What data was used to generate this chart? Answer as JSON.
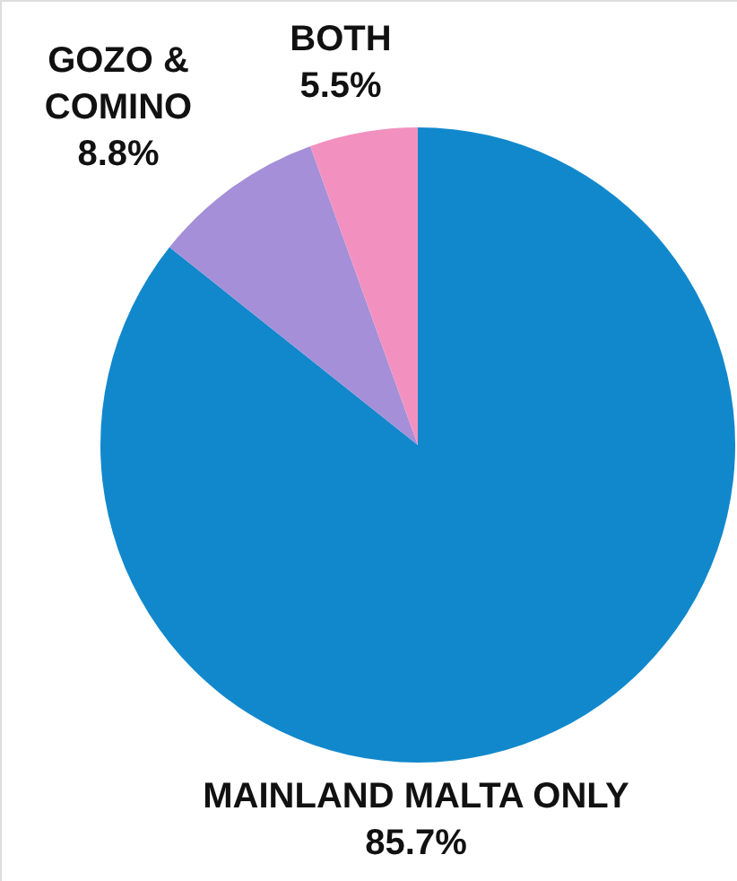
{
  "chart_data": {
    "type": "pie",
    "categories": [
      "MAINLAND MALTA ONLY",
      "GOZO & COMINO",
      "BOTH"
    ],
    "values": [
      85.7,
      8.8,
      5.5
    ],
    "colors": [
      "#1188cc",
      "#a48fd8",
      "#f291c0"
    ],
    "value_labels": [
      "85.7%",
      "8.8%",
      "5.5%"
    ]
  }
}
